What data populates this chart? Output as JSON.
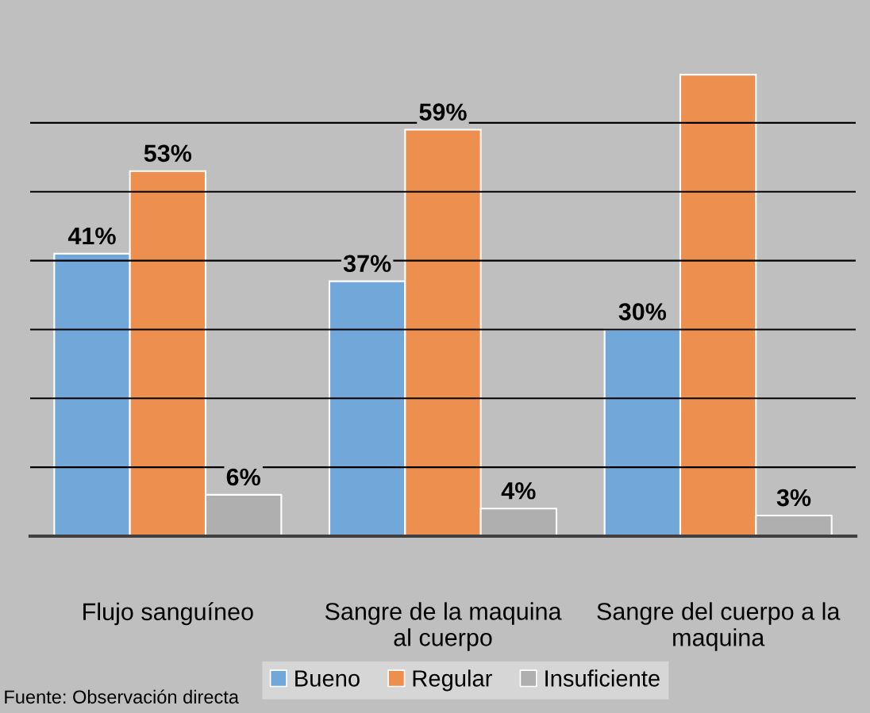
{
  "chart_data": {
    "type": "bar",
    "categories": [
      "Flujo sanguíneo",
      "Sangre de la maquina\nal cuerpo",
      "Sangre del cuerpo a la\nmaquina"
    ],
    "series": [
      {
        "name": "Bueno",
        "color": "#72a7d9",
        "values": [
          41,
          37,
          30
        ],
        "value_labels": [
          "41%",
          "37%",
          "30%"
        ]
      },
      {
        "name": "Regular",
        "color": "#ed8f4f",
        "values": [
          53,
          59,
          67
        ],
        "value_labels": [
          "53%",
          "59%",
          null
        ]
      },
      {
        "name": "Insuficiente",
        "color": "#afafaf",
        "values": [
          6,
          4,
          3
        ],
        "value_labels": [
          "6%",
          "4%",
          "3%"
        ]
      }
    ],
    "yticks": [
      {
        "value": 0,
        "label": null
      },
      {
        "value": 10,
        "label": null
      },
      {
        "value": 20,
        "label": null
      },
      {
        "value": 30,
        "label": null
      },
      {
        "value": 40,
        "label": null
      },
      {
        "value": 50,
        "label": null
      },
      {
        "value": 60,
        "label": null
      }
    ],
    "tick_labels": "x",
    "grid": "y",
    "legend": "bottom",
    "annotations": [
      "Fuente: Observación directa"
    ]
  }
}
